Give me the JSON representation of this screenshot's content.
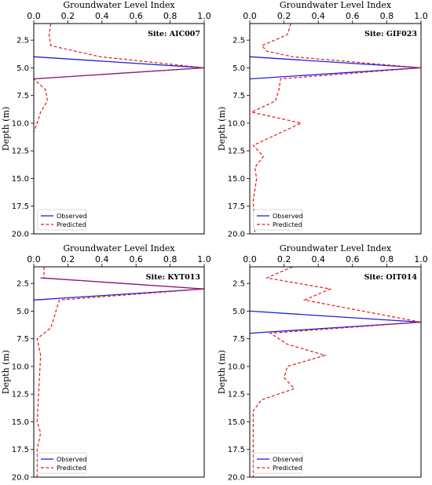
{
  "figure": {
    "xlabel": "Groundwater Level Index",
    "ylabel": "Depth (m)"
  },
  "legend": {
    "observed": "Observed",
    "predicted": "Predicted"
  },
  "colors": {
    "observed": "#1f1fe0",
    "predicted": "#e31a1c"
  },
  "chart_data": [
    {
      "type": "line",
      "site": "Site: AIC007",
      "xlabel": "Groundwater Level Index",
      "ylabel": "Depth (m)",
      "xlim": [
        0,
        1
      ],
      "ylim": [
        20,
        1
      ],
      "xticks": [
        "0.0",
        "0.2",
        "0.4",
        "0.6",
        "0.8",
        "1.0"
      ],
      "yticks": [
        "2.5",
        "5.0",
        "7.5",
        "10.0",
        "12.5",
        "15.0",
        "17.5",
        "20.0"
      ],
      "series": [
        {
          "name": "Observed",
          "points": [
            [
              0,
              4
            ],
            [
              1,
              5
            ],
            [
              0,
              6
            ]
          ]
        },
        {
          "name": "Predicted",
          "points": [
            [
              0.1,
              1
            ],
            [
              0.09,
              2
            ],
            [
              0.1,
              3
            ],
            [
              0.39,
              4
            ],
            [
              1,
              5
            ],
            [
              0,
              6
            ],
            [
              0.07,
              7
            ],
            [
              0.08,
              8
            ],
            [
              0.04,
              9
            ],
            [
              0.02,
              10
            ],
            [
              0,
              10.8
            ]
          ]
        }
      ]
    },
    {
      "type": "line",
      "site": "Site: GIF023",
      "xlabel": "Groundwater Level Index",
      "ylabel": "Depth (m)",
      "xlim": [
        0,
        1
      ],
      "ylim": [
        20,
        1
      ],
      "xticks": [
        "0.0",
        "0.2",
        "0.4",
        "0.6",
        "0.8",
        "1.0"
      ],
      "yticks": [
        "2.5",
        "5.0",
        "7.5",
        "10.0",
        "12.5",
        "15.0",
        "17.5",
        "20.0"
      ],
      "series": [
        {
          "name": "Observed",
          "points": [
            [
              0,
              4
            ],
            [
              1,
              5
            ],
            [
              0,
              6
            ]
          ]
        },
        {
          "name": "Predicted",
          "points": [
            [
              0.24,
              1
            ],
            [
              0.22,
              2
            ],
            [
              0.07,
              3
            ],
            [
              0.1,
              3.5
            ],
            [
              0.25,
              4
            ],
            [
              1,
              5
            ],
            [
              0.18,
              6
            ],
            [
              0.17,
              7
            ],
            [
              0.15,
              8
            ],
            [
              0.01,
              9
            ],
            [
              0.3,
              10
            ],
            [
              0.02,
              12
            ],
            [
              0.08,
              13
            ],
            [
              0.03,
              14
            ],
            [
              0.04,
              15
            ],
            [
              0.02,
              17
            ],
            [
              0.03,
              20
            ]
          ]
        }
      ]
    },
    {
      "type": "line",
      "site": "Site: KYT013",
      "xlabel": "Groundwater Level Index",
      "ylabel": "Depth (m)",
      "xlim": [
        0,
        1
      ],
      "ylim": [
        20,
        1
      ],
      "xticks": [
        "0.0",
        "0.2",
        "0.4",
        "0.6",
        "0.8",
        "1.0"
      ],
      "yticks": [
        "2.5",
        "5.0",
        "7.5",
        "10.0",
        "12.5",
        "15.0",
        "17.5",
        "20.0"
      ],
      "series": [
        {
          "name": "Observed",
          "points": [
            [
              0.04,
              2
            ],
            [
              1,
              3
            ],
            [
              0,
              4
            ]
          ]
        },
        {
          "name": "Predicted",
          "points": [
            [
              0.06,
              1
            ],
            [
              0.06,
              2
            ],
            [
              1,
              3
            ],
            [
              0.15,
              4
            ],
            [
              0.13,
              5
            ],
            [
              0.11,
              6
            ],
            [
              0.1,
              6.5
            ],
            [
              0.02,
              7.5
            ],
            [
              0.04,
              9
            ],
            [
              0.03,
              12
            ],
            [
              0.02,
              15
            ],
            [
              0.04,
              16
            ],
            [
              0.02,
              17.5
            ],
            [
              0.02,
              20
            ]
          ]
        }
      ]
    },
    {
      "type": "line",
      "site": "Site: OIT014",
      "xlabel": "Groundwater Level Index",
      "ylabel": "Depth (m)",
      "xlim": [
        0,
        1
      ],
      "ylim": [
        20,
        1
      ],
      "xticks": [
        "0.0",
        "0.2",
        "0.4",
        "0.6",
        "0.8",
        "1.0"
      ],
      "yticks": [
        "2.5",
        "5.0",
        "7.5",
        "10.0",
        "12.5",
        "15.0",
        "17.5",
        "20.0"
      ],
      "series": [
        {
          "name": "Observed",
          "points": [
            [
              0,
              5
            ],
            [
              1,
              6
            ],
            [
              0,
              7
            ]
          ]
        },
        {
          "name": "Predicted",
          "points": [
            [
              0.25,
              1
            ],
            [
              0.1,
              2
            ],
            [
              0.47,
              3
            ],
            [
              0.32,
              4
            ],
            [
              1,
              6
            ],
            [
              0.12,
              7
            ],
            [
              0.22,
              8
            ],
            [
              0.44,
              9
            ],
            [
              0.22,
              10
            ],
            [
              0.2,
              11
            ],
            [
              0.26,
              12
            ],
            [
              0.07,
              13
            ],
            [
              0.02,
              14
            ],
            [
              0.02,
              20
            ]
          ]
        }
      ]
    }
  ]
}
